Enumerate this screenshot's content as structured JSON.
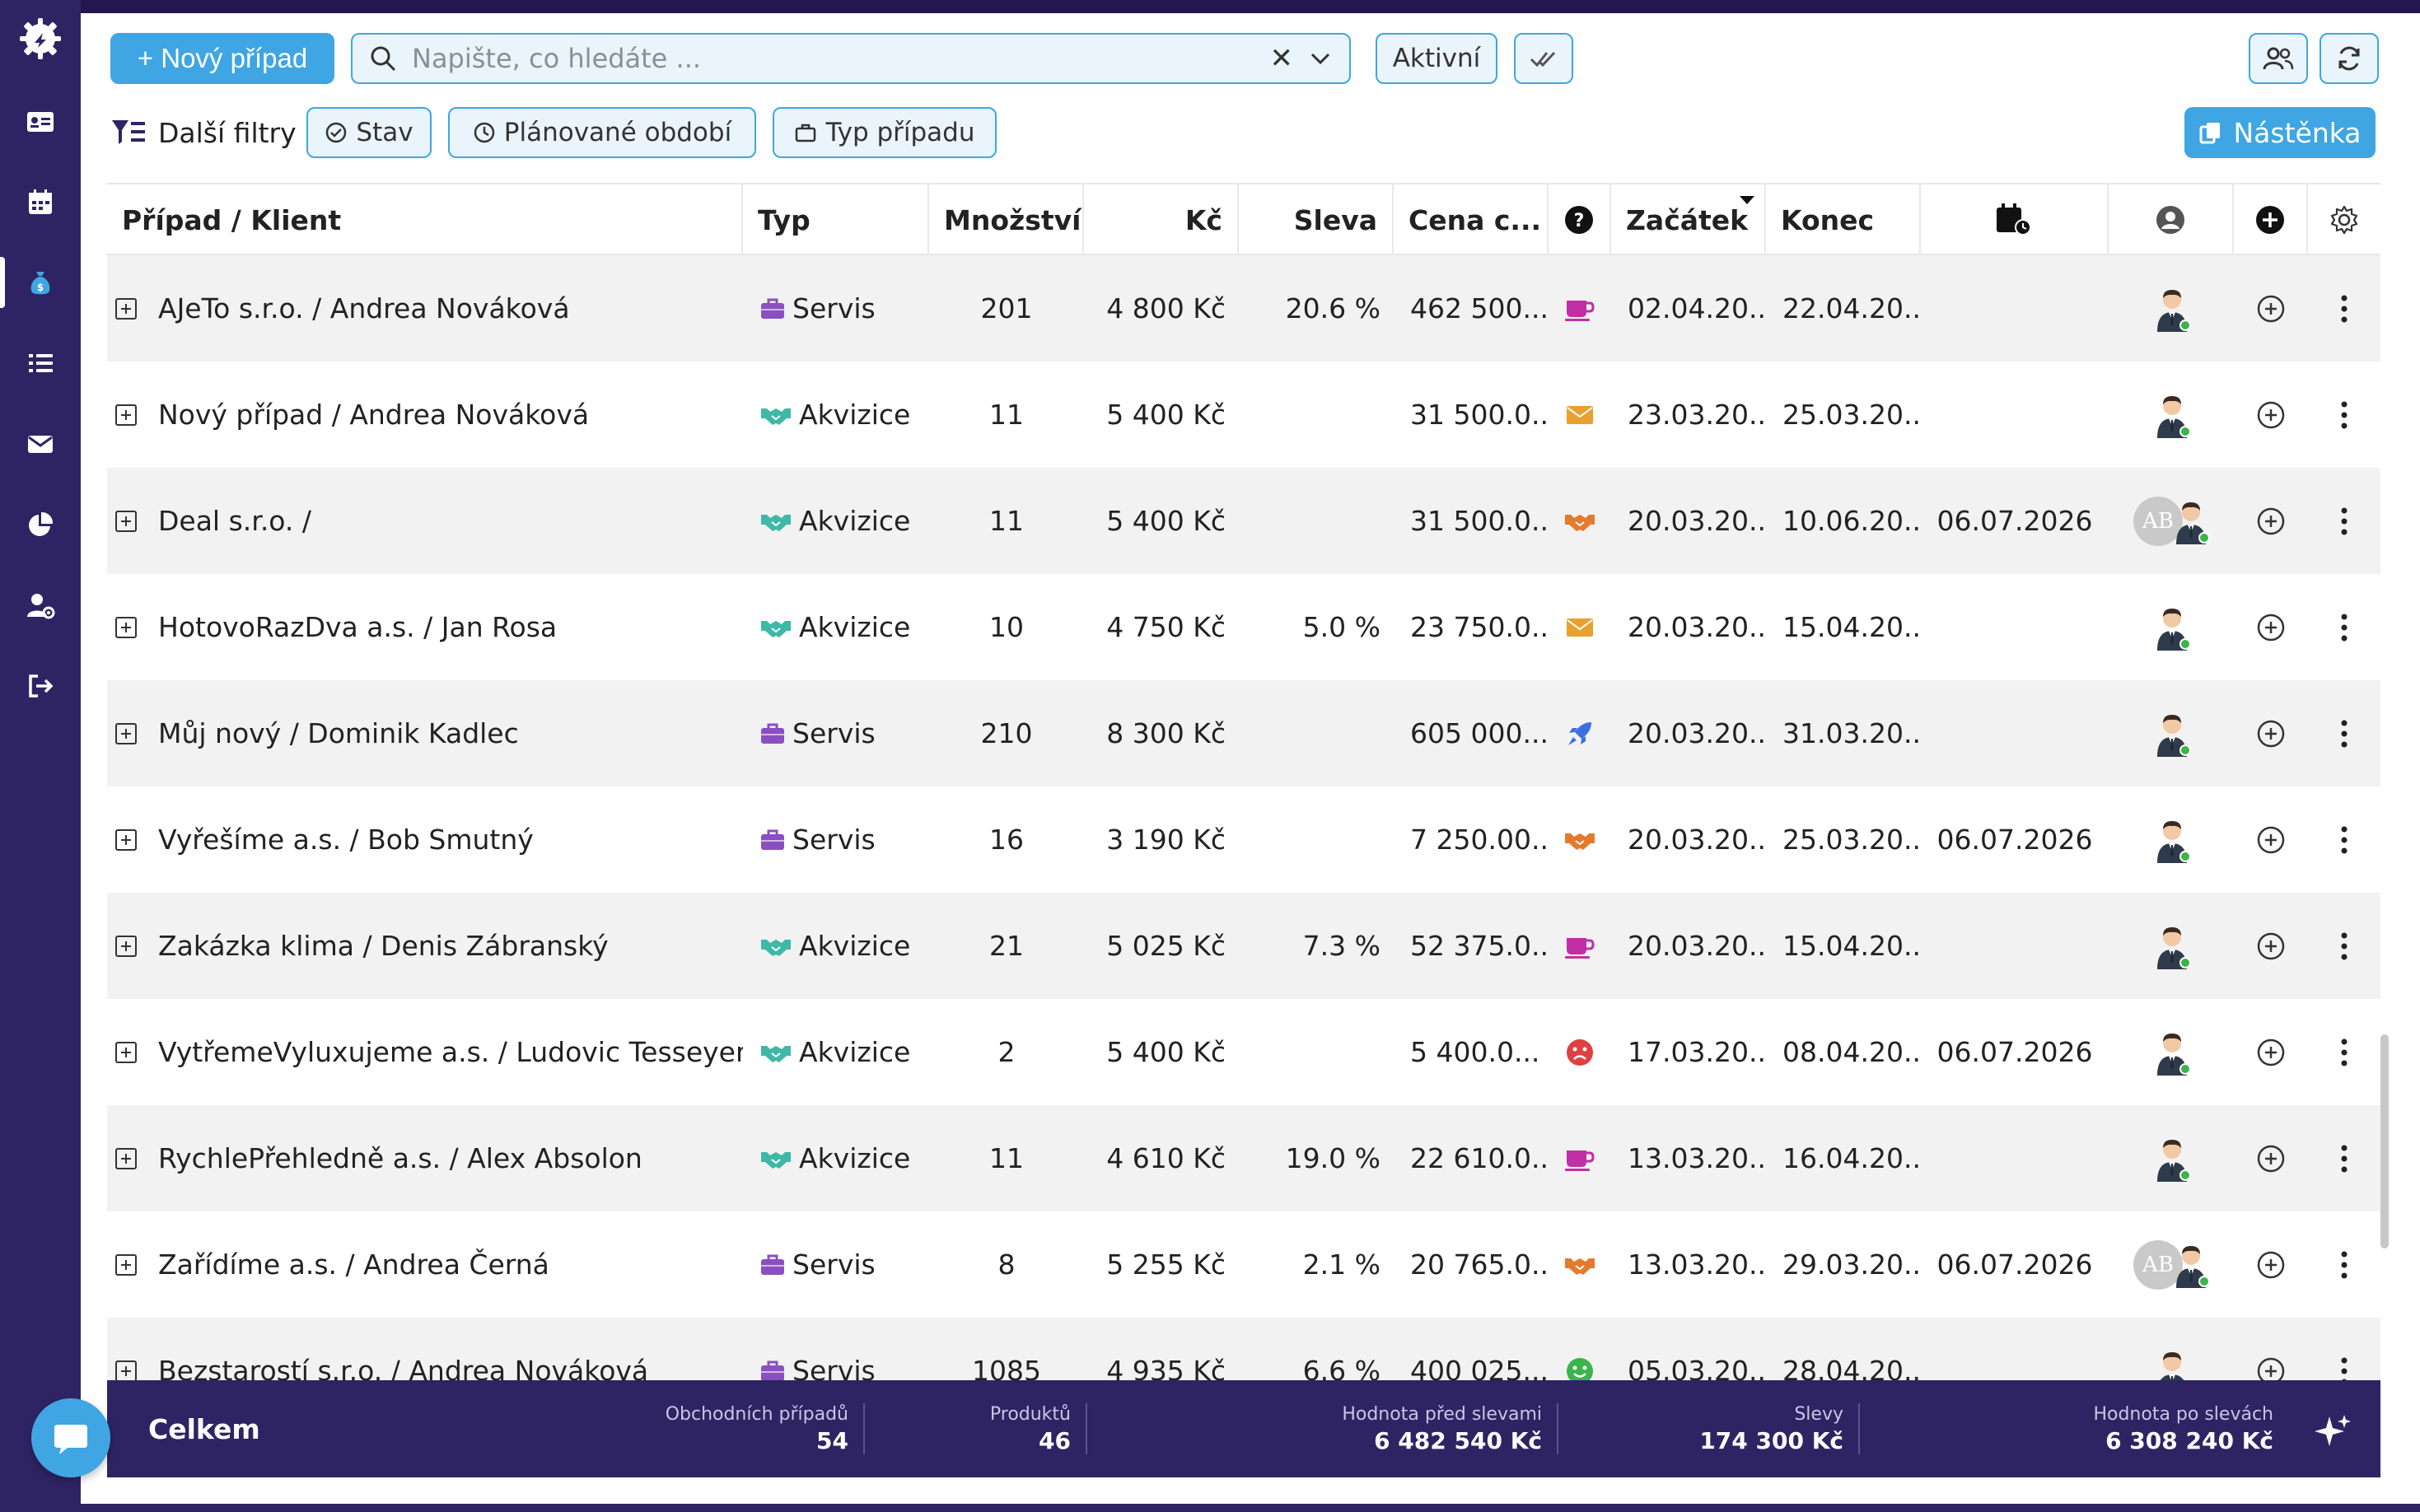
{
  "toolbar": {
    "new_case_label": "+ Nový případ",
    "search_placeholder": "Napište, co hledáte ...",
    "status_filter_label": "Aktivní",
    "more_filters_label": "Další filtry",
    "filter_state_label": "Stav",
    "filter_period_label": "Plánované období",
    "filter_type_label": "Typ případu",
    "board_label": "Nástěnka"
  },
  "table": {
    "headers": {
      "case_client": "Případ / Klient",
      "type": "Typ",
      "quantity": "Množství",
      "price": "Kč",
      "discount": "Sleva",
      "total": "Cena c...",
      "start": "Začátek",
      "end": "Konec"
    },
    "rows": [
      {
        "case": "AJeTo s.r.o. / Andrea Nováková",
        "type": "Servis",
        "type_icon": "briefcase-icon",
        "qty": "201",
        "price": "4 800 Kč",
        "discount": "20.6 %",
        "total": "462 500...",
        "status_icon": "coffee-cup-icon",
        "status_color": "#c02fa6",
        "start": "02.04.20...",
        "end": "22.04.20...",
        "planned": "",
        "avatar_ab": false
      },
      {
        "case": "Nový případ / Andrea Nováková",
        "type": "Akvizice",
        "type_icon": "handshake-icon",
        "qty": "11",
        "price": "5 400 Kč",
        "discount": "",
        "total": "31 500.0...",
        "status_icon": "envelope-icon",
        "status_color": "#e8a12f",
        "start": "23.03.20...",
        "end": "25.03.20...",
        "planned": "",
        "avatar_ab": false
      },
      {
        "case": "Deal s.r.o. /",
        "type": "Akvizice",
        "type_icon": "handshake-icon",
        "qty": "11",
        "price": "5 400 Kč",
        "discount": "",
        "total": "31 500.0...",
        "status_icon": "handshake-icon",
        "status_color": "#e57a2f",
        "start": "20.03.20...",
        "end": "10.06.20...",
        "planned": "06.07.2026",
        "avatar_ab": true
      },
      {
        "case": "HotovoRazDva a.s. / Jan Rosa",
        "type": "Akvizice",
        "type_icon": "handshake-icon",
        "qty": "10",
        "price": "4 750 Kč",
        "discount": "5.0 %",
        "total": "23 750.0...",
        "status_icon": "envelope-icon",
        "status_color": "#e8a12f",
        "start": "20.03.20...",
        "end": "15.04.20...",
        "planned": "",
        "avatar_ab": false
      },
      {
        "case": "Můj nový / Dominik Kadlec",
        "type": "Servis",
        "type_icon": "briefcase-icon",
        "qty": "210",
        "price": "8 300 Kč",
        "discount": "",
        "total": "605 000...",
        "status_icon": "rocket-icon",
        "status_color": "#3a6fe0",
        "start": "20.03.20...",
        "end": "31.03.20...",
        "planned": "",
        "avatar_ab": false
      },
      {
        "case": "Vyřešíme a.s. / Bob Smutný",
        "type": "Servis",
        "type_icon": "briefcase-icon",
        "qty": "16",
        "price": "3 190 Kč",
        "discount": "",
        "total": "7 250.00...",
        "status_icon": "handshake-icon",
        "status_color": "#e57a2f",
        "start": "20.03.20...",
        "end": "25.03.20...",
        "planned": "06.07.2026",
        "avatar_ab": false
      },
      {
        "case": "Zakázka klima / Denis Zábranský",
        "type": "Akvizice",
        "type_icon": "handshake-icon",
        "qty": "21",
        "price": "5 025 Kč",
        "discount": "7.3 %",
        "total": "52 375.0...",
        "status_icon": "coffee-cup-icon",
        "status_color": "#c02fa6",
        "start": "20.03.20...",
        "end": "15.04.20...",
        "planned": "",
        "avatar_ab": false
      },
      {
        "case": "VytřemeVyluxujeme a.s. / Ludovic Tesseyer",
        "type": "Akvizice",
        "type_icon": "handshake-icon",
        "qty": "2",
        "price": "5 400 Kč",
        "discount": "",
        "total": "5 400.0...",
        "status_icon": "sad-face-icon",
        "status_color": "#e04040",
        "start": "17.03.20...",
        "end": "08.04.20...",
        "planned": "06.07.2026",
        "avatar_ab": false
      },
      {
        "case": "RychlePřehledně a.s. / Alex Absolon",
        "type": "Akvizice",
        "type_icon": "handshake-icon",
        "qty": "11",
        "price": "4 610 Kč",
        "discount": "19.0 %",
        "total": "22 610.0...",
        "status_icon": "coffee-cup-icon",
        "status_color": "#c02fa6",
        "start": "13.03.20...",
        "end": "16.04.20...",
        "planned": "",
        "avatar_ab": false
      },
      {
        "case": "Zařídíme a.s. / Andrea Černá",
        "type": "Servis",
        "type_icon": "briefcase-icon",
        "qty": "8",
        "price": "5 255 Kč",
        "discount": "2.1 %",
        "total": "20 765.0...",
        "status_icon": "handshake-icon",
        "status_color": "#e57a2f",
        "start": "13.03.20...",
        "end": "29.03.20...",
        "planned": "06.07.2026",
        "avatar_ab": true
      },
      {
        "case": "Bezstarostí s.r.o. / Andrea Nováková",
        "type": "Servis",
        "type_icon": "briefcase-icon",
        "qty": "1085",
        "price": "4 935 Kč",
        "discount": "6.6 %",
        "total": "400 025...",
        "status_icon": "happy-face-icon",
        "status_color": "#3bb54a",
        "start": "05.03.20...",
        "end": "28.04.20...",
        "planned": "",
        "avatar_ab": false
      }
    ]
  },
  "avatar_initials": "AB",
  "footer": {
    "total_label": "Celkem",
    "stats": [
      {
        "label": "Obchodních případů",
        "value": "54"
      },
      {
        "label": "Produktů",
        "value": "46"
      },
      {
        "label": "Hodnota před slevami",
        "value": "6 482 540 Kč"
      },
      {
        "label": "Slevy",
        "value": "174 300 Kč"
      },
      {
        "label": "Hodnota po slevách",
        "value": "6 308 240 Kč"
      }
    ]
  },
  "colors": {
    "sidebar": "#2e2463",
    "accent": "#3fa6e3",
    "type_servis": "#8a4fc0",
    "type_akvizice": "#3fb8a8"
  }
}
